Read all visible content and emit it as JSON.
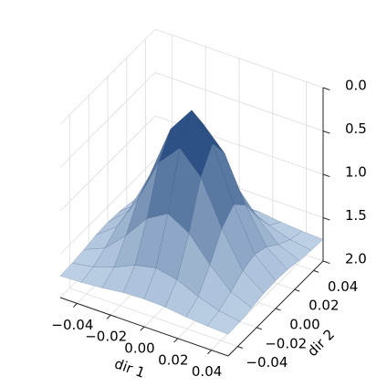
{
  "chart_data": {
    "type": "surface",
    "x": [
      -0.05,
      -0.0375,
      -0.025,
      -0.0125,
      0,
      0.0125,
      0.025,
      0.0375,
      0.05
    ],
    "y": [
      -0.05,
      -0.0375,
      -0.025,
      -0.0125,
      0,
      0.0125,
      0.025,
      0.0375,
      0.05
    ],
    "z": [
      [
        1.75,
        1.74,
        1.72,
        1.69,
        1.68,
        1.69,
        1.72,
        1.74,
        1.75
      ],
      [
        1.74,
        1.7,
        1.62,
        1.51,
        1.46,
        1.51,
        1.62,
        1.7,
        1.74
      ],
      [
        1.72,
        1.62,
        1.39,
        1.11,
        0.97,
        1.11,
        1.39,
        1.62,
        1.72
      ],
      [
        1.69,
        1.51,
        1.11,
        0.6,
        0.35,
        0.6,
        1.11,
        1.51,
        1.69
      ],
      [
        1.68,
        1.46,
        0.97,
        0.35,
        0.05,
        0.35,
        0.97,
        1.46,
        1.68
      ],
      [
        1.69,
        1.51,
        1.11,
        0.6,
        0.35,
        0.6,
        1.11,
        1.51,
        1.69
      ],
      [
        1.72,
        1.62,
        1.39,
        1.11,
        0.97,
        1.11,
        1.39,
        1.62,
        1.72
      ],
      [
        1.74,
        1.7,
        1.62,
        1.51,
        1.46,
        1.51,
        1.62,
        1.7,
        1.74
      ],
      [
        1.75,
        1.74,
        1.72,
        1.69,
        1.68,
        1.69,
        1.72,
        1.74,
        1.75
      ]
    ],
    "xlim": [
      -0.05,
      0.05
    ],
    "ylim": [
      -0.05,
      0.05
    ],
    "zlim": [
      2,
      0
    ],
    "xticks": [
      {
        "value": -0.04,
        "label": "−0.04"
      },
      {
        "value": -0.02,
        "label": "−0.02"
      },
      {
        "value": 0,
        "label": "0.00"
      },
      {
        "value": 0.02,
        "label": "0.02"
      },
      {
        "value": 0.04,
        "label": "0.04"
      }
    ],
    "yticks": [
      {
        "value": -0.04,
        "label": "−0.04"
      },
      {
        "value": -0.02,
        "label": "−0.02"
      },
      {
        "value": 0,
        "label": "0.00"
      },
      {
        "value": 0.02,
        "label": "0.02"
      },
      {
        "value": 0.04,
        "label": "0.04"
      }
    ],
    "zticks": [
      {
        "value": 0,
        "label": "0.0"
      },
      {
        "value": 0.5,
        "label": "0.5"
      },
      {
        "value": 1,
        "label": "1.0"
      },
      {
        "value": 1.5,
        "label": "1.5"
      },
      {
        "value": 2,
        "label": "2.0"
      }
    ],
    "xlabel": "dir 1",
    "ylabel": "dir 2",
    "colormap": [
      "#d2e3f3",
      "#08306b"
    ],
    "grid": true
  }
}
